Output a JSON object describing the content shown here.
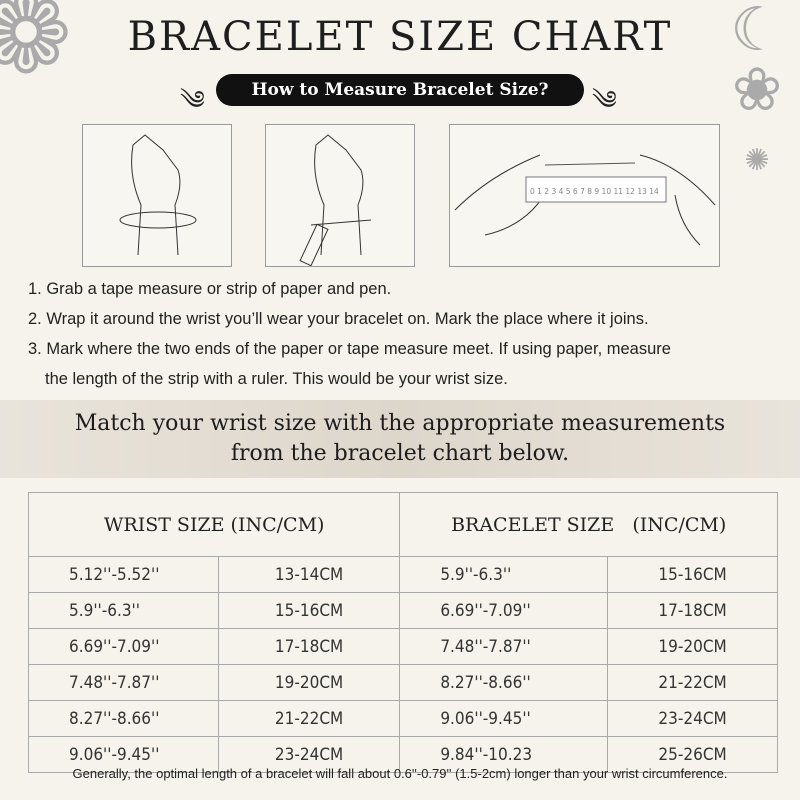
{
  "title": "BRACELET SIZE CHART",
  "subtitle": "How to Measure Bracelet Size?",
  "illustrations": [
    {
      "icon": "hand-wrap-tape-icon"
    },
    {
      "icon": "hand-mark-pen-icon"
    },
    {
      "icon": "hands-ruler-icon",
      "ruler_marks": "0 1 2 3 4 5 6 7 8 9 10 11 12 13 14"
    }
  ],
  "steps": [
    "1. Grab a tape measure or strip of paper and pen.",
    "2. Wrap it around the wrist you’ll wear your bracelet on. Mark the place where it joins.",
    "3. Mark where the two ends of the paper or tape measure meet. If using paper, measure",
    "the length of the strip with a ruler. This would be your wrist size."
  ],
  "banner": [
    "Match your wrist size with the appropriate measurements",
    "from the bracelet chart below."
  ],
  "table": {
    "headers": [
      "WRIST SIZE (INC/CM)",
      "BRACELET SIZE   (INC/CM)"
    ],
    "rows": [
      [
        "5.12''-5.52''",
        "13-14CM",
        "5.9''-6.3''",
        "15-16CM"
      ],
      [
        "5.9''-6.3''",
        "15-16CM",
        "6.69''-7.09''",
        "17-18CM"
      ],
      [
        "6.69''-7.09''",
        "17-18CM",
        "7.48''-7.87''",
        "19-20CM"
      ],
      [
        "7.48''-7.87''",
        "19-20CM",
        "8.27''-8.66''",
        "21-22CM"
      ],
      [
        "8.27''-8.66''",
        "21-22CM",
        "9.06''-9.45''",
        "23-24CM"
      ],
      [
        "9.06''-9.45''",
        "23-24CM",
        "9.84''-10.23",
        "25-26CM"
      ]
    ]
  },
  "footnote": "Generally, the optimal length of a bracelet will fall about 0.6''-0.79'' (1.5-2cm) longer than your wrist circumference."
}
